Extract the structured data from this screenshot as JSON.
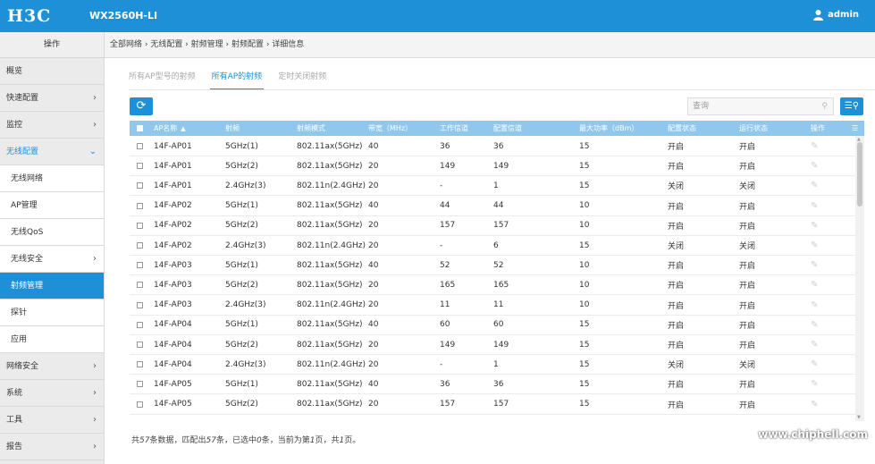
{
  "header": {
    "logo": "H3C",
    "model": "WX2560H-LI",
    "user": "admin"
  },
  "sidebar": {
    "title": "操作",
    "items": [
      {
        "label": "概览",
        "chevron": ""
      },
      {
        "label": "快速配置",
        "chevron": "›"
      },
      {
        "label": "监控",
        "chevron": "›"
      },
      {
        "label": "无线配置",
        "chevron": "⌄"
      },
      {
        "label": "无线网络",
        "chevron": ""
      },
      {
        "label": "AP管理",
        "chevron": ""
      },
      {
        "label": "无线QoS",
        "chevron": ""
      },
      {
        "label": "无线安全",
        "chevron": "›"
      },
      {
        "label": "射频管理",
        "chevron": ""
      },
      {
        "label": "探针",
        "chevron": ""
      },
      {
        "label": "应用",
        "chevron": ""
      },
      {
        "label": "网络安全",
        "chevron": "›"
      },
      {
        "label": "系统",
        "chevron": "›"
      },
      {
        "label": "工具",
        "chevron": "›"
      },
      {
        "label": "报告",
        "chevron": "›"
      }
    ]
  },
  "breadcrumb": "全部网络 › 无线配置 › 射频管理 › 射频配置 › 详细信息",
  "tabs": [
    "所有AP型号的射频",
    "所有AP的射频",
    "定时关闭射频"
  ],
  "search": {
    "placeholder": "查询"
  },
  "table": {
    "headers": [
      "AP名称",
      "射频",
      "射频模式",
      "带宽（MHz）",
      "工作信道",
      "配置信道",
      "最大功率（dBm）",
      "配置状态",
      "运行状态",
      "操作"
    ],
    "rows": [
      [
        "14F-AP01",
        "5GHz(1)",
        "802.11ax(5GHz)",
        "40",
        "36",
        "36",
        "15",
        "开启",
        "开启"
      ],
      [
        "14F-AP01",
        "5GHz(2)",
        "802.11ax(5GHz)",
        "20",
        "149",
        "149",
        "15",
        "开启",
        "开启"
      ],
      [
        "14F-AP01",
        "2.4GHz(3)",
        "802.11n(2.4GHz)",
        "20",
        "-",
        "1",
        "15",
        "关闭",
        "关闭"
      ],
      [
        "14F-AP02",
        "5GHz(1)",
        "802.11ax(5GHz)",
        "40",
        "44",
        "44",
        "10",
        "开启",
        "开启"
      ],
      [
        "14F-AP02",
        "5GHz(2)",
        "802.11ax(5GHz)",
        "20",
        "157",
        "157",
        "10",
        "开启",
        "开启"
      ],
      [
        "14F-AP02",
        "2.4GHz(3)",
        "802.11n(2.4GHz)",
        "20",
        "-",
        "6",
        "15",
        "关闭",
        "关闭"
      ],
      [
        "14F-AP03",
        "5GHz(1)",
        "802.11ax(5GHz)",
        "40",
        "52",
        "52",
        "10",
        "开启",
        "开启"
      ],
      [
        "14F-AP03",
        "5GHz(2)",
        "802.11ax(5GHz)",
        "20",
        "165",
        "165",
        "10",
        "开启",
        "开启"
      ],
      [
        "14F-AP03",
        "2.4GHz(3)",
        "802.11n(2.4GHz)",
        "20",
        "11",
        "11",
        "10",
        "开启",
        "开启"
      ],
      [
        "14F-AP04",
        "5GHz(1)",
        "802.11ax(5GHz)",
        "40",
        "60",
        "60",
        "15",
        "开启",
        "开启"
      ],
      [
        "14F-AP04",
        "5GHz(2)",
        "802.11ax(5GHz)",
        "20",
        "149",
        "149",
        "15",
        "开启",
        "开启"
      ],
      [
        "14F-AP04",
        "2.4GHz(3)",
        "802.11n(2.4GHz)",
        "20",
        "-",
        "1",
        "15",
        "关闭",
        "关闭"
      ],
      [
        "14F-AP05",
        "5GHz(1)",
        "802.11ax(5GHz)",
        "40",
        "36",
        "36",
        "15",
        "开启",
        "开启"
      ],
      [
        "14F-AP05",
        "5GHz(2)",
        "802.11ax(5GHz)",
        "20",
        "157",
        "157",
        "15",
        "开启",
        "开启"
      ]
    ]
  },
  "footer": {
    "p1": "共",
    "total": "57",
    "p2": "条数据，匹配出",
    "matched": "57",
    "p3": "条，已选中",
    "selected": "0",
    "p4": "条，当前为第",
    "page": "1",
    "p5": "页，共",
    "pages": "1",
    "p6": "页。"
  },
  "watermark": "www.chiphell.com"
}
